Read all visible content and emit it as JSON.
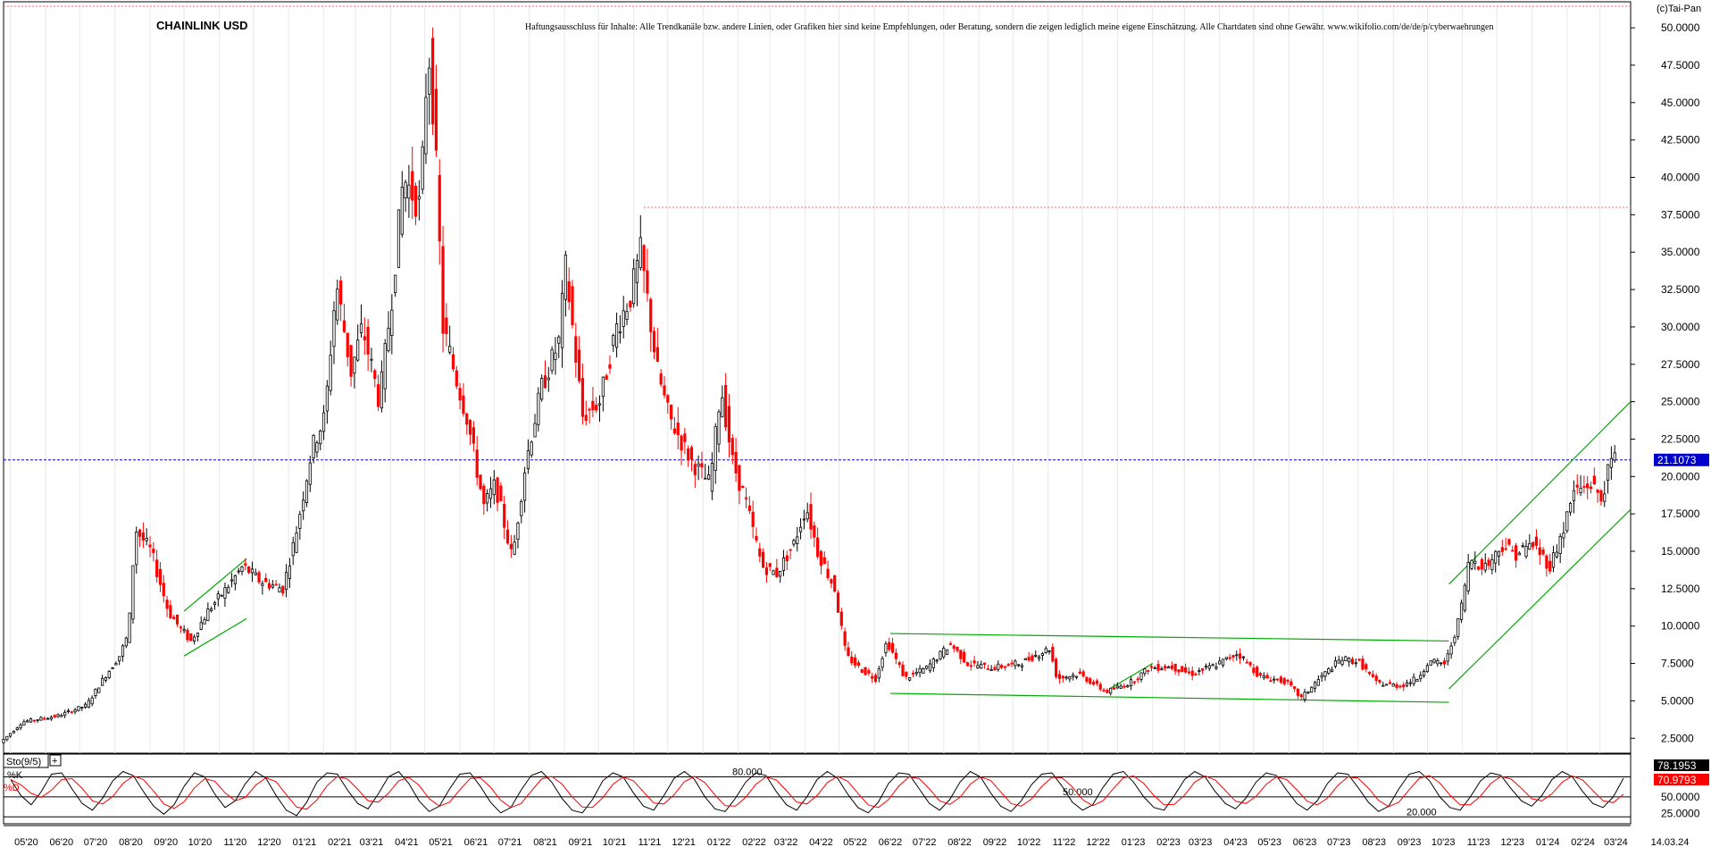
{
  "copyright": "(c)Tai-Pan",
  "chart_data": [
    {
      "type": "candlestick",
      "title": "CHAINLINK USD",
      "subtitle": "Haftungsausschluss für Inhalte: Alle Trendkanäle bzw. andere Linien, oder Grafiken hier sind keine Empfehlungen, oder Beratung, sondern die zeigen lediglich meine eigene Einschätzung. Alle Chartdaten sind ohne Gewähr. www.wikifolio.com/de/de/p/cyberwaehrungen",
      "ylim": [
        1.5,
        51.5
      ],
      "yticks": [
        "50.0000",
        "47.5000",
        "45.0000",
        "42.5000",
        "40.0000",
        "37.5000",
        "35.0000",
        "32.5000",
        "30.0000",
        "27.5000",
        "25.0000",
        "22.5000",
        "20.0000",
        "17.5000",
        "15.0000",
        "12.5000",
        "10.0000",
        "7.5000",
        "5.0000",
        "2.5000"
      ],
      "last_price": "21.1073",
      "last_price_value": 21.1073,
      "resistance_level": 38.0,
      "xtick_labels": [
        "05'20",
        "06'20",
        "07'20",
        "08'20",
        "09'20",
        "10'20",
        "11'20",
        "12'20",
        "01'21",
        "02'21",
        "03'21",
        "04'21",
        "05'21",
        "06'21",
        "07'21",
        "08'21",
        "09'21",
        "10'21",
        "11'21",
        "12'21",
        "01'22",
        "02'22",
        "03'22",
        "04'22",
        "05'22",
        "06'22",
        "07'22",
        "08'22",
        "09'22",
        "10'22",
        "11'22",
        "12'22",
        "01'23",
        "02'23",
        "03'23",
        "04'23",
        "05'23",
        "06'23",
        "07'23",
        "08'23",
        "09'23",
        "10'23",
        "11'23",
        "12'23",
        "01'24",
        "02'24",
        "03'24"
      ],
      "x_end_label": "14.03.24",
      "months": [
        "2020-05",
        "2020-06",
        "2020-07",
        "2020-08",
        "2020-09",
        "2020-10",
        "2020-11",
        "2020-12",
        "2021-01",
        "2021-02",
        "2021-03",
        "2021-04",
        "2021-05",
        "2021-06",
        "2021-07",
        "2021-08",
        "2021-09",
        "2021-10",
        "2021-11",
        "2021-12",
        "2022-01",
        "2022-02",
        "2022-03",
        "2022-04",
        "2022-05",
        "2022-06",
        "2022-07",
        "2022-08",
        "2022-09",
        "2022-10",
        "2022-11",
        "2022-12",
        "2023-01",
        "2023-02",
        "2023-03",
        "2023-04",
        "2023-05",
        "2023-06",
        "2023-07",
        "2023-08",
        "2023-09",
        "2023-10",
        "2023-11",
        "2023-12",
        "2024-01",
        "2024-02",
        "2024-03"
      ],
      "price_path": [
        [
          "2020-04-25",
          2.2
        ],
        [
          "2020-05-15",
          3.6
        ],
        [
          "2020-06-15",
          4.0
        ],
        [
          "2020-07-10",
          4.7
        ],
        [
          "2020-07-25",
          6.5
        ],
        [
          "2020-08-08",
          8.0
        ],
        [
          "2020-08-16",
          9.5
        ],
        [
          "2020-08-22",
          16.5
        ],
        [
          "2020-09-05",
          15.0
        ],
        [
          "2020-09-20",
          11.0
        ],
        [
          "2020-10-01",
          9.8
        ],
        [
          "2020-10-10",
          9.0
        ],
        [
          "2020-10-25",
          11.0
        ],
        [
          "2020-11-10",
          12.5
        ],
        [
          "2020-11-25",
          14.0
        ],
        [
          "2020-12-10",
          13.0
        ],
        [
          "2020-12-30",
          12.5
        ],
        [
          "2021-01-10",
          16.0
        ],
        [
          "2021-01-25",
          22.0
        ],
        [
          "2021-02-05",
          24.0
        ],
        [
          "2021-02-15",
          33.0
        ],
        [
          "2021-02-28",
          27.0
        ],
        [
          "2021-03-10",
          30.0
        ],
        [
          "2021-03-25",
          25.0
        ],
        [
          "2021-04-05",
          32.0
        ],
        [
          "2021-04-15",
          40.0
        ],
        [
          "2021-04-30",
          38.0
        ],
        [
          "2021-05-07",
          49.0
        ],
        [
          "2021-05-12",
          44.0
        ],
        [
          "2021-05-20",
          30.0
        ],
        [
          "2021-05-30",
          27.0
        ],
        [
          "2021-06-10",
          24.0
        ],
        [
          "2021-06-25",
          18.0
        ],
        [
          "2021-07-05",
          19.5
        ],
        [
          "2021-07-20",
          14.5
        ],
        [
          "2021-08-01",
          21.0
        ],
        [
          "2021-08-15",
          26.0
        ],
        [
          "2021-08-30",
          29.0
        ],
        [
          "2021-09-05",
          34.0
        ],
        [
          "2021-09-20",
          24.0
        ],
        [
          "2021-10-05",
          25.0
        ],
        [
          "2021-10-20",
          30.0
        ],
        [
          "2021-11-01",
          32.0
        ],
        [
          "2021-11-10",
          35.0
        ],
        [
          "2021-11-25",
          27.0
        ],
        [
          "2021-12-05",
          24.0
        ],
        [
          "2021-12-25",
          21.0
        ],
        [
          "2022-01-10",
          19.5
        ],
        [
          "2022-01-20",
          26.0
        ],
        [
          "2022-01-30",
          21.0
        ],
        [
          "2022-02-10",
          18.5
        ],
        [
          "2022-02-25",
          14.0
        ],
        [
          "2022-03-10",
          13.5
        ],
        [
          "2022-03-25",
          15.5
        ],
        [
          "2022-04-05",
          18.0
        ],
        [
          "2022-04-15",
          15.0
        ],
        [
          "2022-04-30",
          12.5
        ],
        [
          "2022-05-10",
          8.0
        ],
        [
          "2022-05-25",
          7.0
        ],
        [
          "2022-06-05",
          6.5
        ],
        [
          "2022-06-15",
          9.0
        ],
        [
          "2022-07-01",
          6.5
        ],
        [
          "2022-07-20",
          7.2
        ],
        [
          "2022-08-10",
          8.8
        ],
        [
          "2022-08-25",
          7.5
        ],
        [
          "2022-09-15",
          7.2
        ],
        [
          "2022-10-10",
          7.5
        ],
        [
          "2022-11-05",
          8.5
        ],
        [
          "2022-11-12",
          6.5
        ],
        [
          "2022-12-01",
          6.8
        ],
        [
          "2022-12-25",
          5.6
        ],
        [
          "2023-01-15",
          6.2
        ],
        [
          "2023-02-01",
          7.2
        ],
        [
          "2023-02-20",
          7.3
        ],
        [
          "2023-03-10",
          6.8
        ],
        [
          "2023-04-01",
          7.4
        ],
        [
          "2023-04-20",
          8.2
        ],
        [
          "2023-05-10",
          6.6
        ],
        [
          "2023-06-01",
          6.3
        ],
        [
          "2023-06-15",
          5.2
        ],
        [
          "2023-07-01",
          6.5
        ],
        [
          "2023-07-20",
          7.8
        ],
        [
          "2023-08-05",
          7.6
        ],
        [
          "2023-08-20",
          6.2
        ],
        [
          "2023-09-10",
          6.0
        ],
        [
          "2023-09-25",
          6.5
        ],
        [
          "2023-10-05",
          7.6
        ],
        [
          "2023-10-20",
          7.5
        ],
        [
          "2023-11-01",
          10.5
        ],
        [
          "2023-11-10",
          14.5
        ],
        [
          "2023-11-25",
          14.0
        ],
        [
          "2023-12-10",
          15.5
        ],
        [
          "2023-12-20",
          14.8
        ],
        [
          "2024-01-05",
          15.5
        ],
        [
          "2024-01-20",
          14.0
        ],
        [
          "2024-02-01",
          16.5
        ],
        [
          "2024-02-10",
          19.0
        ],
        [
          "2024-02-25",
          19.5
        ],
        [
          "2024-03-05",
          18.5
        ],
        [
          "2024-03-14",
          21.1
        ]
      ],
      "horizontal_channel_upper": [
        [
          "2022-06-15",
          9.5
        ],
        [
          "2023-10-20",
          9.0
        ]
      ],
      "horizontal_channel_lower": [
        [
          "2022-06-15",
          5.5
        ],
        [
          "2023-10-20",
          4.9
        ]
      ],
      "channel_2020_upper": [
        [
          "2020-10-01",
          11.0
        ],
        [
          "2020-11-25",
          14.5
        ]
      ],
      "channel_2020_lower": [
        [
          "2020-10-01",
          8.0
        ],
        [
          "2020-11-25",
          10.5
        ]
      ],
      "channel_2023_small": [
        [
          "2022-12-25",
          5.8
        ],
        [
          "2023-02-01",
          7.5
        ]
      ],
      "channel_2024_upper": [
        [
          "2023-10-20",
          12.8
        ],
        [
          "2024-03-28",
          25.0
        ]
      ],
      "channel_2024_lower": [
        [
          "2023-10-20",
          5.8
        ],
        [
          "2024-03-28",
          17.8
        ]
      ],
      "colors": {
        "up": "#000000",
        "down": "#ff0000",
        "trend": "#00aa00",
        "resistance": "#ff6666",
        "last_price": "#0000cc"
      }
    },
    {
      "type": "line",
      "title": "Sto(9/5)",
      "series": [
        {
          "name": "%K",
          "color": "#000000"
        },
        {
          "name": "%D",
          "color": "#ff0000"
        }
      ],
      "ylim": [
        15,
        90
      ],
      "levels": [
        {
          "value": 80,
          "label": "80.000"
        },
        {
          "value": 50,
          "label": "50.000"
        },
        {
          "value": 20,
          "label": "20.000"
        }
      ],
      "yticks": [
        "50.0000",
        "25.0000"
      ],
      "k_last": "78.1953",
      "d_last": "70.9793",
      "k_values": [
        76,
        52,
        38,
        58,
        84,
        86,
        62,
        40,
        30,
        48,
        74,
        88,
        82,
        58,
        36,
        24,
        38,
        66,
        86,
        80,
        54,
        34,
        44,
        70,
        88,
        78,
        52,
        30,
        22,
        42,
        72,
        86,
        84,
        60,
        40,
        32,
        54,
        80,
        88,
        70,
        44,
        28,
        36,
        62,
        84,
        86,
        66,
        42,
        26,
        34,
        60,
        82,
        88,
        72,
        48,
        30,
        26,
        46,
        74,
        86,
        80,
        56,
        36,
        30,
        52,
        78,
        88,
        76,
        50,
        32,
        28,
        48,
        72,
        86,
        82,
        58,
        38,
        30,
        50,
        76,
        88,
        78,
        54,
        34,
        26,
        42,
        70,
        86,
        84,
        62,
        40,
        30,
        46,
        72,
        88,
        80,
        56,
        36,
        28,
        44,
        68,
        84,
        86,
        66,
        42,
        30,
        38,
        64,
        84,
        88,
        72,
        50,
        34,
        30,
        52,
        76,
        88,
        80,
        58,
        40,
        32,
        48,
        72,
        86,
        82,
        60,
        40,
        30,
        44,
        70,
        86,
        84,
        64,
        42,
        28,
        36,
        62,
        84,
        88,
        74,
        50,
        34,
        30,
        50,
        74,
        86,
        82,
        62,
        44,
        36,
        52,
        76,
        88,
        80,
        58,
        40,
        34,
        50,
        78
      ]
    }
  ]
}
